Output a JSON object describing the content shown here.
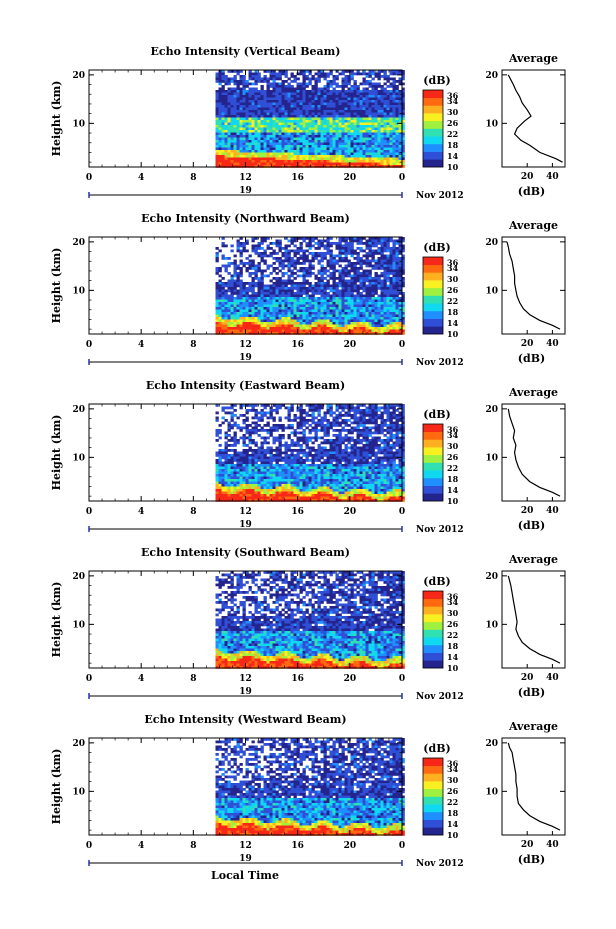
{
  "figure": {
    "xlabel": "Local Time",
    "date_label": "Nov 2012",
    "day_label": "19",
    "colorbar_unit": "(dB)",
    "colorbar_ticks": [
      "36",
      "34",
      "30",
      "26",
      "22",
      "18",
      "14",
      "10"
    ],
    "profile_title": "Average",
    "profile_xlabel": "(dB)",
    "colors": {
      "scale": [
        "#24248f",
        "#2f4fd6",
        "#1f8fff",
        "#10d8f0",
        "#30e0b0",
        "#a0f040",
        "#f8f020",
        "#ffb020",
        "#ff6a10",
        "#f82818"
      ]
    }
  },
  "chart_data": [
    {
      "type": "heatmap",
      "title": "Echo Intensity (Vertical Beam)",
      "ylabel": "Height (km)",
      "xlim": [
        0,
        24
      ],
      "ylim": [
        1,
        21
      ],
      "x_ticks": [
        "0",
        "4",
        "8",
        "12",
        "16",
        "20",
        "0"
      ],
      "y_ticks": [
        "20",
        "10"
      ],
      "data_start_hour": 9.7,
      "colorbar": {
        "range": [
          10,
          38
        ],
        "ticks": [
          36,
          34,
          30,
          26,
          22,
          18,
          14,
          10
        ],
        "unit": "dB"
      },
      "profile": {
        "title": "Average",
        "xlabel": "(dB)",
        "x_ticks": [
          "20",
          "40"
        ],
        "y_ticks": [
          "20",
          "10"
        ],
        "xlim": [
          0,
          50
        ],
        "ylim": [
          1,
          21
        ],
        "points": [
          [
            48,
            2
          ],
          [
            43,
            2.7
          ],
          [
            30,
            4
          ],
          [
            22,
            5.5
          ],
          [
            15,
            6.5
          ],
          [
            10,
            7.8
          ],
          [
            12,
            9
          ],
          [
            18,
            10.5
          ],
          [
            23,
            11.5
          ],
          [
            20,
            12.8
          ],
          [
            16,
            14.2
          ],
          [
            14,
            15.5
          ],
          [
            11,
            16.8
          ],
          [
            9,
            18
          ],
          [
            7,
            19
          ],
          [
            5,
            20
          ]
        ]
      }
    },
    {
      "type": "heatmap",
      "title": "Echo Intensity (Northward Beam)",
      "ylabel": "Height (km)",
      "xlim": [
        0,
        24
      ],
      "ylim": [
        1,
        21
      ],
      "x_ticks": [
        "0",
        "4",
        "8",
        "12",
        "16",
        "20",
        "0"
      ],
      "y_ticks": [
        "20",
        "10"
      ],
      "data_start_hour": 9.7,
      "colorbar": {
        "range": [
          10,
          38
        ],
        "ticks": [
          36,
          34,
          30,
          26,
          22,
          18,
          14,
          10
        ],
        "unit": "dB"
      },
      "profile": {
        "title": "Average",
        "xlabel": "(dB)",
        "x_ticks": [
          "20",
          "40"
        ],
        "y_ticks": [
          "20",
          "10"
        ],
        "xlim": [
          0,
          50
        ],
        "ylim": [
          1,
          21
        ],
        "points": [
          [
            46,
            2
          ],
          [
            40,
            2.8
          ],
          [
            30,
            3.8
          ],
          [
            22,
            5
          ],
          [
            17,
            6.2
          ],
          [
            14,
            7.5
          ],
          [
            12,
            8.8
          ],
          [
            11,
            10
          ],
          [
            10,
            11.5
          ],
          [
            10,
            13
          ],
          [
            9,
            14.5
          ],
          [
            8,
            16
          ],
          [
            6,
            17.5
          ],
          [
            5,
            19
          ],
          [
            4,
            20
          ]
        ]
      }
    },
    {
      "type": "heatmap",
      "title": "Echo Intensity (Eastward Beam)",
      "ylabel": "Height (km)",
      "xlim": [
        0,
        24
      ],
      "ylim": [
        1,
        21
      ],
      "x_ticks": [
        "0",
        "4",
        "8",
        "12",
        "16",
        "20",
        "0"
      ],
      "y_ticks": [
        "20",
        "10"
      ],
      "data_start_hour": 9.7,
      "colorbar": {
        "range": [
          10,
          38
        ],
        "ticks": [
          36,
          34,
          30,
          26,
          22,
          18,
          14,
          10
        ],
        "unit": "dB"
      },
      "profile": {
        "title": "Average",
        "xlabel": "(dB)",
        "x_ticks": [
          "20",
          "40"
        ],
        "y_ticks": [
          "20",
          "10"
        ],
        "xlim": [
          0,
          50
        ],
        "ylim": [
          1,
          21
        ],
        "points": [
          [
            46,
            2
          ],
          [
            40,
            2.8
          ],
          [
            30,
            3.8
          ],
          [
            22,
            5
          ],
          [
            16,
            6.5
          ],
          [
            13,
            8
          ],
          [
            11,
            9.5
          ],
          [
            10,
            11
          ],
          [
            11,
            12.5
          ],
          [
            9,
            14
          ],
          [
            10,
            15.5
          ],
          [
            8,
            17
          ],
          [
            6,
            18.5
          ],
          [
            5,
            20
          ]
        ]
      }
    },
    {
      "type": "heatmap",
      "title": "Echo Intensity (Southward Beam)",
      "ylabel": "Height (km)",
      "xlim": [
        0,
        24
      ],
      "ylim": [
        1,
        21
      ],
      "x_ticks": [
        "0",
        "4",
        "8",
        "12",
        "16",
        "20",
        "0"
      ],
      "y_ticks": [
        "20",
        "10"
      ],
      "data_start_hour": 9.7,
      "colorbar": {
        "range": [
          10,
          38
        ],
        "ticks": [
          36,
          34,
          30,
          26,
          22,
          18,
          14,
          10
        ],
        "unit": "dB"
      },
      "profile": {
        "title": "Average",
        "xlabel": "(dB)",
        "x_ticks": [
          "20",
          "40"
        ],
        "y_ticks": [
          "20",
          "10"
        ],
        "xlim": [
          0,
          50
        ],
        "ylim": [
          1,
          21
        ],
        "points": [
          [
            46,
            2
          ],
          [
            40,
            2.8
          ],
          [
            30,
            3.8
          ],
          [
            22,
            5
          ],
          [
            16,
            6.3
          ],
          [
            13,
            7.6
          ],
          [
            11,
            9
          ],
          [
            12,
            10.5
          ],
          [
            11,
            12
          ],
          [
            10,
            13.5
          ],
          [
            9,
            15
          ],
          [
            8,
            16.5
          ],
          [
            7,
            18
          ],
          [
            6,
            19
          ],
          [
            5,
            20
          ]
        ]
      }
    },
    {
      "type": "heatmap",
      "title": "Echo Intensity (Westward Beam)",
      "ylabel": "Height (km)",
      "xlim": [
        0,
        24
      ],
      "ylim": [
        1,
        21
      ],
      "x_ticks": [
        "0",
        "4",
        "8",
        "12",
        "16",
        "20",
        "0"
      ],
      "y_ticks": [
        "20",
        "10"
      ],
      "data_start_hour": 9.7,
      "colorbar": {
        "range": [
          10,
          38
        ],
        "ticks": [
          36,
          34,
          30,
          26,
          22,
          18,
          14,
          10
        ],
        "unit": "dB"
      },
      "profile": {
        "title": "Average",
        "xlabel": "(dB)",
        "x_ticks": [
          "20",
          "40"
        ],
        "y_ticks": [
          "20",
          "10"
        ],
        "xlim": [
          0,
          50
        ],
        "ylim": [
          1,
          21
        ],
        "points": [
          [
            46,
            2
          ],
          [
            40,
            2.8
          ],
          [
            30,
            3.8
          ],
          [
            22,
            5
          ],
          [
            17,
            6.2
          ],
          [
            13,
            7.5
          ],
          [
            12,
            9
          ],
          [
            12,
            10.5
          ],
          [
            11,
            12
          ],
          [
            11,
            13.5
          ],
          [
            10,
            15
          ],
          [
            9,
            16.5
          ],
          [
            8,
            18
          ],
          [
            6,
            19
          ],
          [
            5,
            20
          ]
        ]
      }
    }
  ]
}
